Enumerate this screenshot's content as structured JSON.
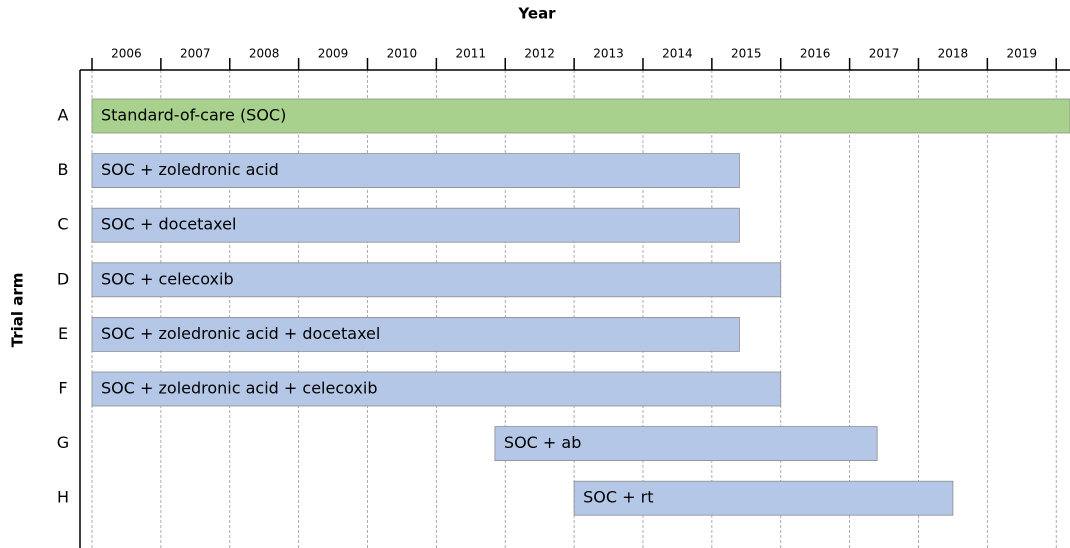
{
  "chart_data": {
    "type": "gantt",
    "title": "Year",
    "ylabel": "Trial arm",
    "xlim": [
      2006,
      2020.2
    ],
    "xticks": [
      {
        "value": 2006,
        "label": "2006"
      },
      {
        "value": 2007,
        "label": "2007"
      },
      {
        "value": 2008,
        "label": "2008"
      },
      {
        "value": 2009,
        "label": "2009"
      },
      {
        "value": 2010,
        "label": "2010"
      },
      {
        "value": 2011,
        "label": "2011"
      },
      {
        "value": 2012,
        "label": "2012"
      },
      {
        "value": 2013,
        "label": "2013"
      },
      {
        "value": 2014,
        "label": "2014"
      },
      {
        "value": 2015,
        "label": "2015"
      },
      {
        "value": 2016,
        "label": "2016"
      },
      {
        "value": 2017,
        "label": "2017"
      },
      {
        "value": 2018,
        "label": "2018"
      },
      {
        "value": 2019,
        "label": "2019"
      }
    ],
    "grid": true,
    "bars": [
      {
        "arm": "A",
        "name": "Standard-of-care (SOC)",
        "start": 2006,
        "end": 2020.2,
        "color": "#a9d18e"
      },
      {
        "arm": "B",
        "name": "SOC + zoledronic acid",
        "start": 2006,
        "end": 2015.4,
        "color": "#b4c7e7"
      },
      {
        "arm": "C",
        "name": "SOC + docetaxel",
        "start": 2006,
        "end": 2015.4,
        "color": "#b4c7e7"
      },
      {
        "arm": "D",
        "name": "SOC + celecoxib",
        "start": 2006,
        "end": 2016.0,
        "color": "#b4c7e7"
      },
      {
        "arm": "E",
        "name": "SOC + zoledronic acid + docetaxel",
        "start": 2006,
        "end": 2015.4,
        "color": "#b4c7e7"
      },
      {
        "arm": "F",
        "name": "SOC + zoledronic acid + celecoxib",
        "start": 2006,
        "end": 2016.0,
        "color": "#b4c7e7"
      },
      {
        "arm": "G",
        "name": "SOC + ab",
        "start": 2011.85,
        "end": 2017.4,
        "color": "#b4c7e7"
      },
      {
        "arm": "H",
        "name": "SOC + rt",
        "start": 2013.0,
        "end": 2018.5,
        "color": "#b4c7e7"
      }
    ]
  }
}
